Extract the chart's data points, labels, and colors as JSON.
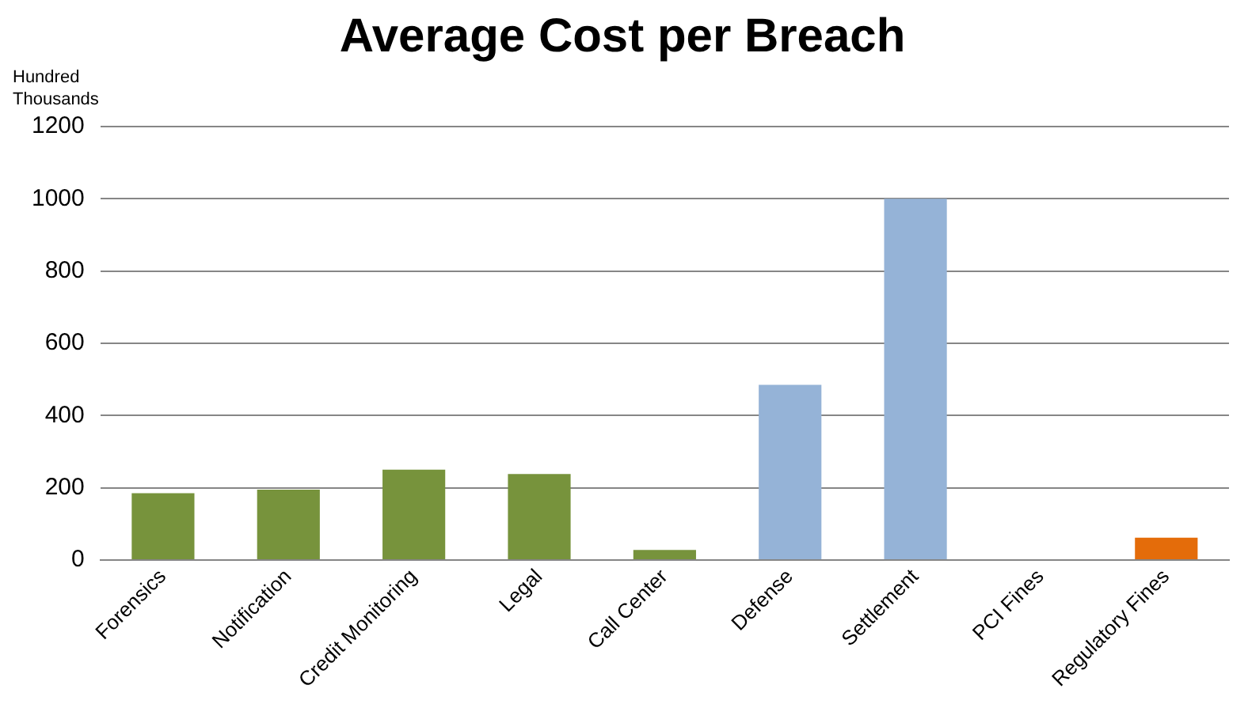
{
  "chart_data": {
    "type": "bar",
    "title": "Average Cost per Breach",
    "ylabel": "Hundred Thousands",
    "categories": [
      "Forensics",
      "Notification",
      "Credit Monitoring",
      "Legal",
      "Call Center",
      "Defense",
      "Settlement",
      "PCI Fines",
      "Regulatory Fines"
    ],
    "values": [
      185,
      195,
      250,
      238,
      28,
      485,
      1000,
      0,
      62
    ],
    "colors": [
      "#77933c",
      "#77933c",
      "#77933c",
      "#77933c",
      "#77933c",
      "#95b3d7",
      "#95b3d7",
      "#95b3d7",
      "#e46c0a"
    ],
    "ylim": [
      0,
      1200
    ],
    "yticks": [
      0,
      200,
      400,
      600,
      800,
      1000,
      1200
    ],
    "grid": "y",
    "legend": false
  }
}
